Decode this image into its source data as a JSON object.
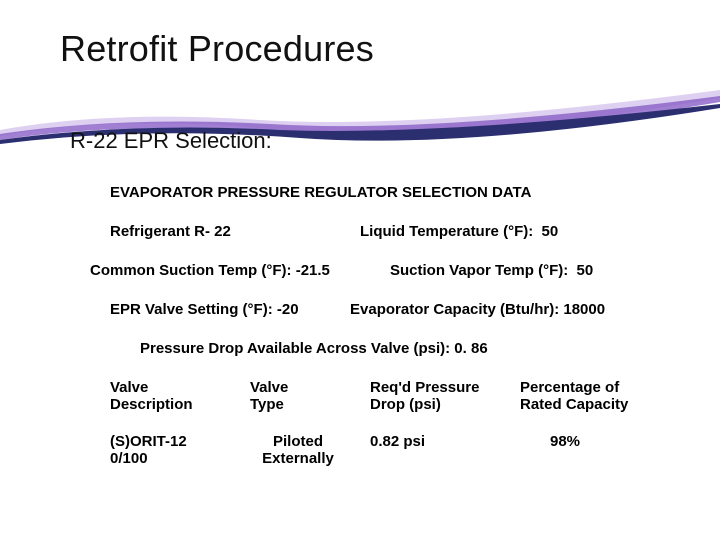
{
  "title": "Retrofit Procedures",
  "subtitle": "R-22 EPR Selection:",
  "selection": {
    "header": "EVAPORATOR PRESSURE REGULATOR SELECTION DATA",
    "refrigerant_label": "Refrigerant R- 22",
    "liquid_temp_label": "Liquid Temperature (°F):  50",
    "common_suction_label": "Common Suction Temp (°F): -21.5",
    "suction_vapor_label": "Suction Vapor Temp (°F):  50",
    "epr_setting_label": "EPR Valve Setting (°F): -20",
    "evap_capacity_label": "Evaporator Capacity (Btu/hr): 18000",
    "pressure_drop_label": "Pressure Drop Available Across Valve (psi): 0. 86"
  },
  "table": {
    "headers": {
      "c1": "Valve\nDescription",
      "c2": "Valve\nType",
      "c3": "Req'd Pressure\nDrop (psi)",
      "c4": "Percentage of\nRated Capacity"
    },
    "row": {
      "c1": "(S)ORIT-12\n0/100",
      "c2": "Piloted\nExternally",
      "c3": "0.82 psi",
      "c4": "98%"
    }
  },
  "style": {
    "swoosh_dark": "#2b2e6f",
    "swoosh_purple": "#8a5fc7",
    "swoosh_light": "#d8c8ef",
    "background": "#ffffff",
    "title_fontsize": 36,
    "subtitle_fontsize": 22,
    "body_fontsize": 15
  }
}
